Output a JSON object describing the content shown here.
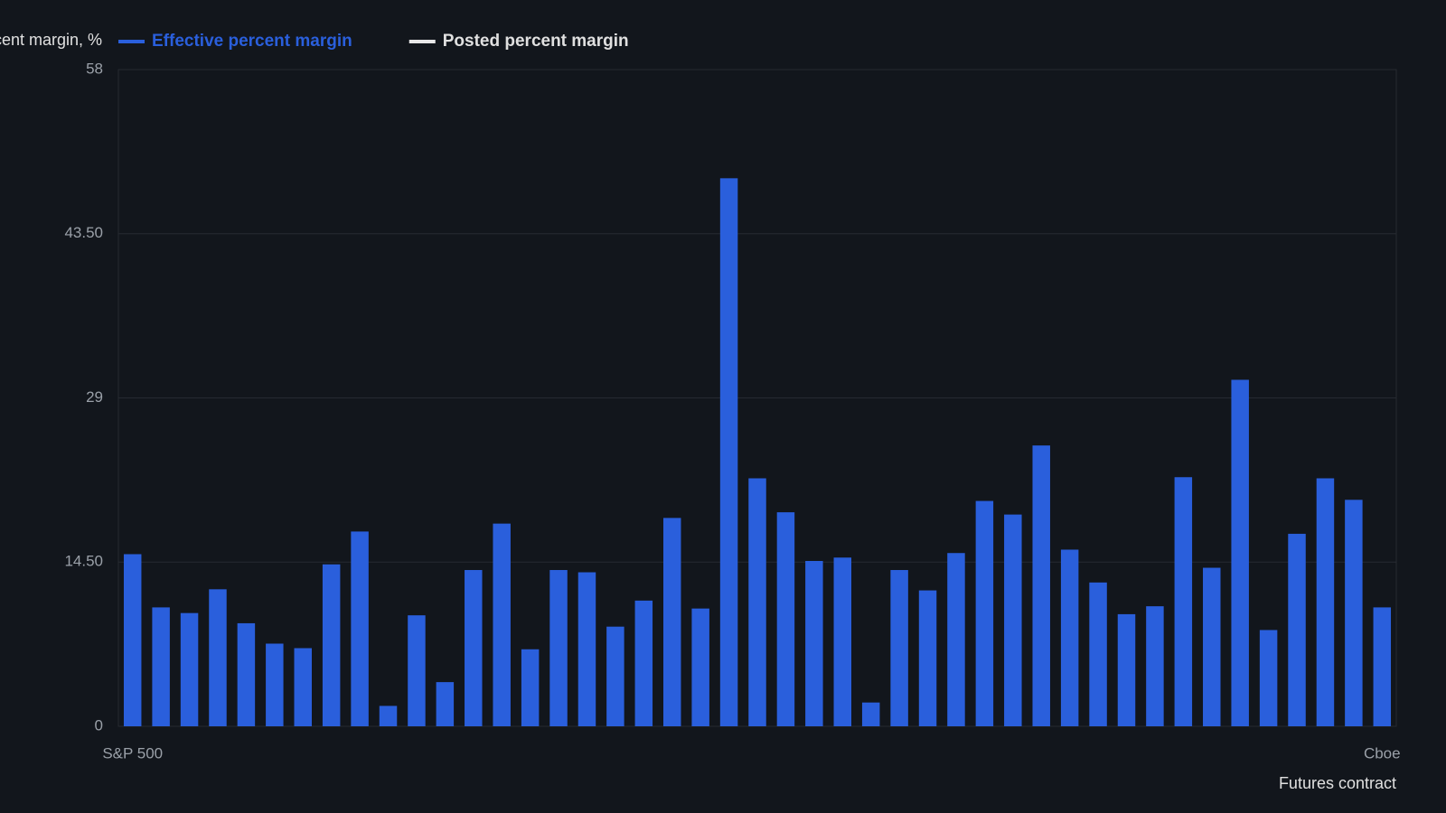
{
  "chart_data": {
    "type": "bar",
    "y_label": "Percent margin, %",
    "x_label": "Futures contract",
    "categories": [
      "S&P 500",
      null,
      null,
      null,
      null,
      null,
      null,
      null,
      null,
      null,
      null,
      null,
      null,
      null,
      null,
      null,
      null,
      null,
      null,
      null,
      null,
      null,
      null,
      null,
      null,
      null,
      null,
      null,
      null,
      null,
      null,
      null,
      null,
      null,
      null,
      null,
      null,
      null,
      null,
      null,
      null,
      null,
      null,
      null,
      "Cboe"
    ],
    "series": [
      {
        "name": "Effective percent margin",
        "color": "#2a5fdc",
        "values": [
          15.2,
          10.5,
          10.0,
          12.1,
          9.1,
          7.3,
          6.9,
          14.3,
          17.2,
          1.8,
          9.8,
          3.9,
          13.8,
          17.9,
          6.8,
          13.8,
          13.6,
          8.8,
          11.1,
          18.4,
          10.4,
          48.4,
          21.9,
          18.9,
          14.6,
          14.9,
          2.1,
          13.8,
          12.0,
          15.3,
          19.9,
          18.7,
          24.8,
          15.6,
          12.7,
          9.9,
          10.6,
          22.0,
          14.0,
          30.6,
          8.5,
          17.0,
          21.9,
          20.0,
          10.5
        ]
      },
      {
        "name": "Posted percent margin",
        "color": "#e8e8e8",
        "values": [
          null,
          null,
          null,
          null,
          null,
          null,
          null,
          null,
          null,
          null,
          null,
          null,
          null,
          null,
          null,
          null,
          null,
          null,
          null,
          null,
          null,
          null,
          null,
          null,
          null,
          null,
          null,
          null,
          null,
          null,
          null,
          null,
          null,
          null,
          null,
          null,
          null,
          null,
          null,
          null,
          null,
          null,
          null,
          null,
          null
        ]
      }
    ],
    "ylim": [
      0,
      58
    ],
    "yticks": [
      0,
      {
        "value": 14.5,
        "label": "14.50"
      },
      29,
      {
        "value": 43.5,
        "label": "43.50"
      },
      58
    ],
    "grid": true
  }
}
